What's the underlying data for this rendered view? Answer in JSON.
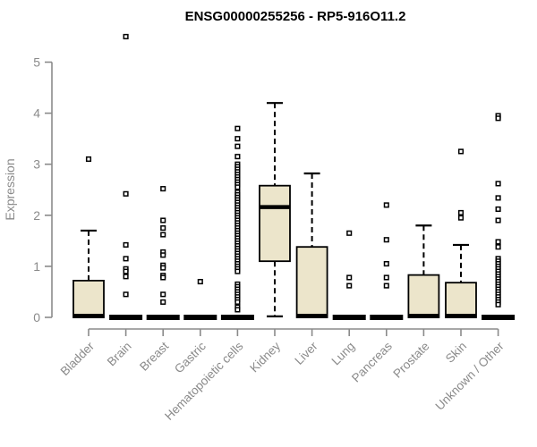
{
  "chart_data": {
    "type": "boxplot",
    "title": "ENSG00000255256 - RP5-916O11.2",
    "ylabel": "Expression",
    "xlabel": "",
    "ylim": [
      0,
      5.5
    ],
    "yticks": [
      0,
      1,
      2,
      3,
      4,
      5
    ],
    "grid": false,
    "legend": "none",
    "colors": {
      "box_fill": "#ece5cb",
      "box_border": "#000000",
      "whisker": "#000000",
      "axis": "#8a8a8a",
      "tick_label": "#8a8a8a",
      "title": "#000000",
      "background": "#ffffff"
    },
    "categories": [
      "Bladder",
      "Brain",
      "Breast",
      "Gastric",
      "Hematopoietic cells",
      "Kidney",
      "Liver",
      "Lung",
      "Pancreas",
      "Prostate",
      "Skin",
      "Unknown / Other"
    ],
    "series": [
      {
        "name": "Bladder",
        "q1": 0,
        "median": 0.03,
        "q3": 0.72,
        "whisker_low": 0,
        "whisker_high": 1.7,
        "outliers": [
          3.1
        ]
      },
      {
        "name": "Brain",
        "q1": 0,
        "median": 0,
        "q3": 0,
        "whisker_low": 0,
        "whisker_high": 0,
        "outliers": [
          5.5,
          2.42,
          1.42,
          1.15,
          0.95,
          0.9,
          0.8,
          0.45
        ]
      },
      {
        "name": "Breast",
        "q1": 0,
        "median": 0,
        "q3": 0,
        "whisker_low": 0,
        "whisker_high": 0,
        "outliers": [
          2.52,
          1.9,
          1.75,
          1.62,
          1.28,
          1.22,
          1.02,
          0.97,
          0.82,
          0.78,
          0.45,
          0.3
        ]
      },
      {
        "name": "Gastric",
        "q1": 0,
        "median": 0,
        "q3": 0,
        "whisker_low": 0,
        "whisker_high": 0,
        "outliers": [
          0.7
        ]
      },
      {
        "name": "Hematopoietic cells",
        "q1": 0,
        "median": 0,
        "q3": 0,
        "whisker_low": 0,
        "whisker_high": 0,
        "outliers": [
          3.7,
          3.5,
          3.35,
          3.15,
          3.0,
          2.95,
          2.9,
          2.85,
          2.8,
          2.75,
          2.7,
          2.65,
          2.6,
          2.55,
          2.45,
          2.4,
          2.35,
          2.3,
          2.25,
          2.2,
          2.15,
          2.1,
          2.05,
          2.0,
          1.95,
          1.9,
          1.85,
          1.8,
          1.75,
          1.7,
          1.65,
          1.6,
          1.55,
          1.5,
          1.45,
          1.4,
          1.35,
          1.3,
          1.25,
          1.2,
          1.15,
          1.1,
          1.05,
          1.0,
          0.95,
          0.9,
          0.65,
          0.6,
          0.55,
          0.5,
          0.45,
          0.4,
          0.35,
          0.3,
          0.2,
          0.15
        ]
      },
      {
        "name": "Kidney",
        "q1": 1.1,
        "median": 2.16,
        "q3": 2.58,
        "whisker_low": 0.02,
        "whisker_high": 4.2,
        "outliers": []
      },
      {
        "name": "Liver",
        "q1": 0,
        "median": 0.03,
        "q3": 1.38,
        "whisker_low": 0,
        "whisker_high": 2.82,
        "outliers": []
      },
      {
        "name": "Lung",
        "q1": 0,
        "median": 0,
        "q3": 0,
        "whisker_low": 0,
        "whisker_high": 0,
        "outliers": [
          1.65,
          0.78,
          0.62
        ]
      },
      {
        "name": "Pancreas",
        "q1": 0,
        "median": 0,
        "q3": 0,
        "whisker_low": 0,
        "whisker_high": 0,
        "outliers": [
          2.2,
          1.52,
          1.05,
          0.78,
          0.62
        ]
      },
      {
        "name": "Prostate",
        "q1": 0,
        "median": 0.03,
        "q3": 0.83,
        "whisker_low": 0,
        "whisker_high": 1.8,
        "outliers": []
      },
      {
        "name": "Skin",
        "q1": 0,
        "median": 0.03,
        "q3": 0.68,
        "whisker_low": 0,
        "whisker_high": 1.42,
        "outliers": [
          3.25,
          2.05,
          1.95
        ]
      },
      {
        "name": "Unknown / Other",
        "q1": 0,
        "median": 0,
        "q3": 0,
        "whisker_low": 0,
        "whisker_high": 0,
        "outliers": [
          3.95,
          3.9,
          2.62,
          2.34,
          2.12,
          1.9,
          1.48,
          1.38,
          1.15,
          1.1,
          1.05,
          1.0,
          0.95,
          0.9,
          0.85,
          0.8,
          0.75,
          0.7,
          0.65,
          0.6,
          0.55,
          0.5,
          0.45,
          0.4,
          0.35,
          0.3,
          0.25
        ]
      }
    ]
  }
}
